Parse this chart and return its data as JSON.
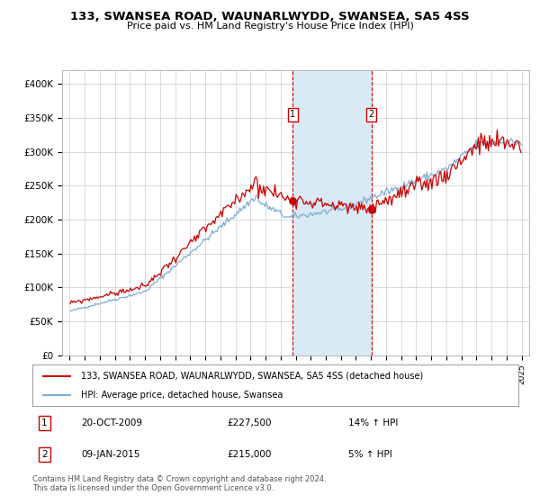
{
  "title": "133, SWANSEA ROAD, WAUNARLWYDD, SWANSEA, SA5 4SS",
  "subtitle": "Price paid vs. HM Land Registry's House Price Index (HPI)",
  "legend_line1": "133, SWANSEA ROAD, WAUNARLWYDD, SWANSEA, SA5 4SS (detached house)",
  "legend_line2": "HPI: Average price, detached house, Swansea",
  "sale1_date": "20-OCT-2009",
  "sale1_price": 227500,
  "sale1_hpi": "14% ↑ HPI",
  "sale2_date": "09-JAN-2015",
  "sale2_price": 215000,
  "sale2_hpi": "5% ↑ HPI",
  "footer": "Contains HM Land Registry data © Crown copyright and database right 2024.\nThis data is licensed under the Open Government Licence v3.0.",
  "red_color": "#cc0000",
  "blue_color": "#7aadd4",
  "shade_color": "#daeaf5",
  "yticks": [
    0,
    50000,
    100000,
    150000,
    200000,
    250000,
    300000,
    350000,
    400000
  ],
  "ytick_labels": [
    "£0",
    "£50K",
    "£100K",
    "£150K",
    "£200K",
    "£250K",
    "£300K",
    "£350K",
    "£400K"
  ],
  "sale1_x": 2009.8,
  "sale2_x": 2015.03,
  "xmin": 1994.5,
  "xmax": 2025.5,
  "ymin": 0,
  "ymax": 420000
}
